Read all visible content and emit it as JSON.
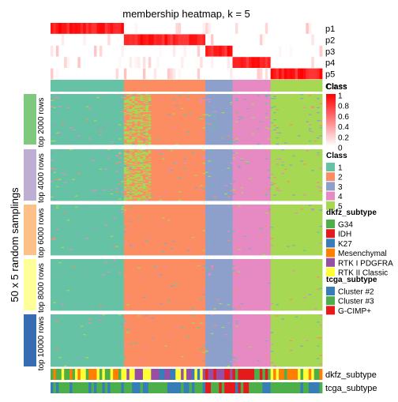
{
  "chart_data": {
    "type": "heatmap",
    "title": "membership heatmap, k = 5",
    "n_samples": 100,
    "membership_rows": [
      "p1",
      "p2",
      "p3",
      "p4",
      "p5"
    ],
    "class_row_label": "Class",
    "y_axis_label": "50 x 5 random samplings",
    "row_groups": [
      "top 2000 rows",
      "top 4000 rows",
      "top 6000 rows",
      "top 8000 rows",
      "top 10000 rows"
    ],
    "annotation_rows": [
      "dkfz_subtype",
      "tcga_subtype"
    ],
    "class_segments": [
      {
        "class": 1,
        "start": 0,
        "end": 27
      },
      {
        "class": 2,
        "start": 27,
        "end": 57
      },
      {
        "class": 3,
        "start": 57,
        "end": 67
      },
      {
        "class": 4,
        "start": 67,
        "end": 81
      },
      {
        "class": 5,
        "start": 81,
        "end": 100
      }
    ],
    "membership_legend": {
      "title": "Class",
      "ticks": [
        "1",
        "0.8",
        "0.6",
        "0.4",
        "0.2",
        "0"
      ],
      "range": [
        0,
        1
      ]
    },
    "class_legend": {
      "title": "Class",
      "items": [
        {
          "label": "1",
          "color": "#66c2a5"
        },
        {
          "label": "2",
          "color": "#fc8d62"
        },
        {
          "label": "3",
          "color": "#8da0cb"
        },
        {
          "label": "4",
          "color": "#e78ac3"
        },
        {
          "label": "5",
          "color": "#a6d854"
        }
      ]
    },
    "dkfz_legend": {
      "title": "dkfz_subtype",
      "items": [
        {
          "label": "G34",
          "color": "#4daf4a"
        },
        {
          "label": "IDH",
          "color": "#e41a1c"
        },
        {
          "label": "K27",
          "color": "#377eb8"
        },
        {
          "label": "Mesenchymal",
          "color": "#ff7f00"
        },
        {
          "label": "RTK I PDGFRA",
          "color": "#984ea3"
        },
        {
          "label": "RTK II Classic",
          "color": "#ffff33"
        }
      ]
    },
    "tcga_legend": {
      "title": "tcga_subtype",
      "items": [
        {
          "label": "Cluster #2",
          "color": "#377eb8"
        },
        {
          "label": "Cluster #3",
          "color": "#4daf4a"
        },
        {
          "label": "G-CIMP+",
          "color": "#e41a1c"
        }
      ]
    },
    "group_colors": [
      "#7fc97f",
      "#beaed4",
      "#fdc086",
      "#ffff99",
      "#386cb0"
    ],
    "membership_color_range": [
      "#ffffff",
      "#ff0000"
    ]
  }
}
